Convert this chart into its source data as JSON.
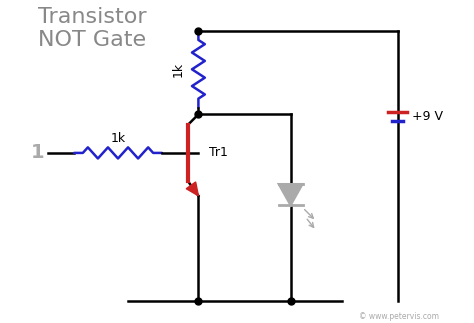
{
  "title": "Transistor\nNOT Gate",
  "title_color": "#888888",
  "title_fontsize": 16,
  "bg_color": "#ffffff",
  "wire_color": "#000000",
  "blue": "#2222cc",
  "red": "#cc2222",
  "gray": "#aaaaaa",
  "label_1k_top": "1k",
  "label_1k_left": "1k",
  "label_tr1": "Tr1",
  "label_input": "1",
  "label_voltage": "+9 V",
  "label_website": "© www.petervis.com",
  "xlim": [
    0,
    9.5
  ],
  "ylim": [
    0,
    7.5
  ]
}
